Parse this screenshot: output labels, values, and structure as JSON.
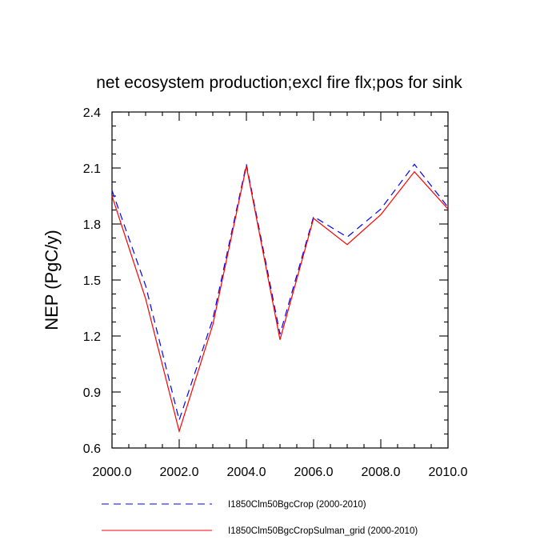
{
  "chart_data": {
    "type": "line",
    "title": "net ecosystem production;excl fire flx;pos for sink",
    "xlabel": "",
    "ylabel": "NEP  (PgC/y)",
    "xlim": [
      2000,
      2010
    ],
    "ylim": [
      0.6,
      2.4
    ],
    "xticks": [
      "2000.0",
      "2002.0",
      "2004.0",
      "2006.0",
      "2008.0",
      "2010.0"
    ],
    "yticks": [
      "0.6",
      "0.9",
      "1.2",
      "1.5",
      "1.8",
      "2.1",
      "2.4"
    ],
    "x": [
      2000,
      2001,
      2002,
      2003,
      2004,
      2005,
      2006,
      2007,
      2008,
      2009,
      2010
    ],
    "series": [
      {
        "name": "I1850Clm50BgcCrop (2000-2010)",
        "color": "#0000ff",
        "style": "dashed",
        "values": [
          1.98,
          1.47,
          0.75,
          1.29,
          2.12,
          1.21,
          1.84,
          1.73,
          1.88,
          2.12,
          1.89
        ]
      },
      {
        "name": "I1850Clm50BgcCropSulman_grid (2000-2010)",
        "color": "#ff0000",
        "style": "solid",
        "values": [
          1.95,
          1.4,
          0.69,
          1.26,
          2.11,
          1.18,
          1.83,
          1.69,
          1.85,
          2.08,
          1.88
        ]
      }
    ],
    "grid": false,
    "legend_position": "bottom"
  }
}
